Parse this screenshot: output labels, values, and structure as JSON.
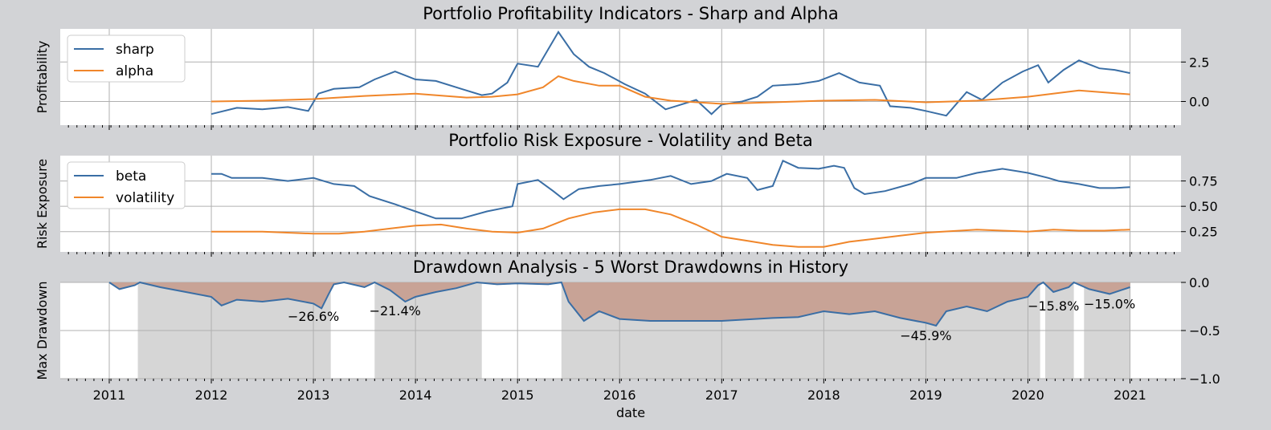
{
  "figure": {
    "background": "#d2d3d6",
    "plot_background": "#ffffff",
    "grid_color": "#b0b0b0",
    "shared_x": {
      "label": "date",
      "ticks": [
        2011,
        2012,
        2013,
        2014,
        2015,
        2016,
        2017,
        2018,
        2019,
        2020,
        2021
      ],
      "tick_labels": [
        "2011",
        "2012",
        "2013",
        "2014",
        "2015",
        "2016",
        "2017",
        "2018",
        "2019",
        "2020",
        "2021"
      ],
      "range": [
        2010.52,
        2021.5
      ]
    }
  },
  "chart_data": [
    {
      "type": "line",
      "title": "Portfolio Profitability Indicators - Sharp and Alpha",
      "ylabel": "Profitability",
      "xlabel": "",
      "ylim": [
        -1.5,
        4.6
      ],
      "yticks": [
        0.0,
        2.5
      ],
      "ytick_labels": [
        "0.0",
        "2.5"
      ],
      "grid": true,
      "legend_position": "upper-left",
      "series": [
        {
          "name": "sharp",
          "color": "#3a6ea5",
          "points": [
            [
              2012.0,
              -0.8
            ],
            [
              2012.25,
              -0.4
            ],
            [
              2012.5,
              -0.5
            ],
            [
              2012.75,
              -0.35
            ],
            [
              2012.95,
              -0.6
            ],
            [
              2013.05,
              0.5
            ],
            [
              2013.2,
              0.8
            ],
            [
              2013.45,
              0.9
            ],
            [
              2013.6,
              1.4
            ],
            [
              2013.8,
              1.9
            ],
            [
              2014.0,
              1.4
            ],
            [
              2014.2,
              1.3
            ],
            [
              2014.45,
              0.8
            ],
            [
              2014.65,
              0.4
            ],
            [
              2014.75,
              0.5
            ],
            [
              2014.9,
              1.2
            ],
            [
              2015.0,
              2.4
            ],
            [
              2015.2,
              2.2
            ],
            [
              2015.4,
              4.4
            ],
            [
              2015.55,
              3.0
            ],
            [
              2015.7,
              2.2
            ],
            [
              2015.85,
              1.8
            ],
            [
              2016.05,
              1.1
            ],
            [
              2016.25,
              0.5
            ],
            [
              2016.45,
              -0.5
            ],
            [
              2016.6,
              -0.2
            ],
            [
              2016.75,
              0.1
            ],
            [
              2016.9,
              -0.8
            ],
            [
              2017.0,
              -0.2
            ],
            [
              2017.2,
              0.0
            ],
            [
              2017.35,
              0.3
            ],
            [
              2017.5,
              1.0
            ],
            [
              2017.75,
              1.1
            ],
            [
              2017.95,
              1.3
            ],
            [
              2018.15,
              1.8
            ],
            [
              2018.35,
              1.2
            ],
            [
              2018.55,
              1.0
            ],
            [
              2018.65,
              -0.3
            ],
            [
              2018.85,
              -0.4
            ],
            [
              2019.0,
              -0.6
            ],
            [
              2019.2,
              -0.9
            ],
            [
              2019.4,
              0.6
            ],
            [
              2019.55,
              0.1
            ],
            [
              2019.75,
              1.2
            ],
            [
              2019.95,
              1.9
            ],
            [
              2020.1,
              2.3
            ],
            [
              2020.2,
              1.2
            ],
            [
              2020.35,
              2.0
            ],
            [
              2020.5,
              2.6
            ],
            [
              2020.7,
              2.1
            ],
            [
              2020.85,
              2.0
            ],
            [
              2021.0,
              1.8
            ]
          ]
        },
        {
          "name": "alpha",
          "color": "#f0862a",
          "points": [
            [
              2012.0,
              0.0
            ],
            [
              2012.5,
              0.05
            ],
            [
              2013.0,
              0.15
            ],
            [
              2013.5,
              0.35
            ],
            [
              2014.0,
              0.5
            ],
            [
              2014.5,
              0.25
            ],
            [
              2014.75,
              0.3
            ],
            [
              2015.0,
              0.45
            ],
            [
              2015.25,
              0.9
            ],
            [
              2015.4,
              1.6
            ],
            [
              2015.55,
              1.3
            ],
            [
              2015.8,
              1.0
            ],
            [
              2016.0,
              1.0
            ],
            [
              2016.25,
              0.3
            ],
            [
              2016.5,
              0.05
            ],
            [
              2017.0,
              -0.15
            ],
            [
              2017.5,
              -0.05
            ],
            [
              2018.0,
              0.05
            ],
            [
              2018.5,
              0.1
            ],
            [
              2019.0,
              -0.05
            ],
            [
              2019.5,
              0.05
            ],
            [
              2020.0,
              0.3
            ],
            [
              2020.5,
              0.7
            ],
            [
              2021.0,
              0.45
            ]
          ]
        }
      ]
    },
    {
      "type": "line",
      "title": "Portfolio Risk Exposure - Volatility and Beta",
      "ylabel": "Risk Exposure",
      "xlabel": "",
      "ylim": [
        0.05,
        1.0
      ],
      "yticks": [
        0.25,
        0.5,
        0.75
      ],
      "ytick_labels": [
        "0.25",
        "0.50",
        "0.75"
      ],
      "grid": true,
      "legend_position": "upper-left",
      "series": [
        {
          "name": "beta",
          "color": "#3a6ea5",
          "points": [
            [
              2012.0,
              0.82
            ],
            [
              2012.1,
              0.82
            ],
            [
              2012.2,
              0.78
            ],
            [
              2012.5,
              0.78
            ],
            [
              2012.75,
              0.75
            ],
            [
              2013.0,
              0.78
            ],
            [
              2013.2,
              0.72
            ],
            [
              2013.4,
              0.7
            ],
            [
              2013.55,
              0.6
            ],
            [
              2013.8,
              0.52
            ],
            [
              2014.0,
              0.45
            ],
            [
              2014.2,
              0.38
            ],
            [
              2014.45,
              0.38
            ],
            [
              2014.7,
              0.45
            ],
            [
              2014.85,
              0.48
            ],
            [
              2014.95,
              0.5
            ],
            [
              2015.0,
              0.72
            ],
            [
              2015.2,
              0.76
            ],
            [
              2015.35,
              0.65
            ],
            [
              2015.45,
              0.57
            ],
            [
              2015.6,
              0.67
            ],
            [
              2015.8,
              0.7
            ],
            [
              2016.0,
              0.72
            ],
            [
              2016.3,
              0.76
            ],
            [
              2016.5,
              0.8
            ],
            [
              2016.7,
              0.72
            ],
            [
              2016.9,
              0.75
            ],
            [
              2017.05,
              0.82
            ],
            [
              2017.25,
              0.78
            ],
            [
              2017.35,
              0.66
            ],
            [
              2017.5,
              0.7
            ],
            [
              2017.6,
              0.95
            ],
            [
              2017.75,
              0.88
            ],
            [
              2017.95,
              0.87
            ],
            [
              2018.1,
              0.9
            ],
            [
              2018.2,
              0.88
            ],
            [
              2018.3,
              0.68
            ],
            [
              2018.4,
              0.62
            ],
            [
              2018.6,
              0.65
            ],
            [
              2018.85,
              0.72
            ],
            [
              2019.0,
              0.78
            ],
            [
              2019.3,
              0.78
            ],
            [
              2019.5,
              0.83
            ],
            [
              2019.75,
              0.87
            ],
            [
              2020.0,
              0.83
            ],
            [
              2020.2,
              0.78
            ],
            [
              2020.3,
              0.75
            ],
            [
              2020.5,
              0.72
            ],
            [
              2020.7,
              0.68
            ],
            [
              2020.85,
              0.68
            ],
            [
              2021.0,
              0.69
            ]
          ]
        },
        {
          "name": "volatility",
          "color": "#f0862a",
          "points": [
            [
              2012.0,
              0.25
            ],
            [
              2012.5,
              0.25
            ],
            [
              2013.0,
              0.23
            ],
            [
              2013.25,
              0.23
            ],
            [
              2013.5,
              0.25
            ],
            [
              2013.75,
              0.28
            ],
            [
              2014.0,
              0.31
            ],
            [
              2014.25,
              0.32
            ],
            [
              2014.5,
              0.28
            ],
            [
              2014.75,
              0.25
            ],
            [
              2015.0,
              0.24
            ],
            [
              2015.25,
              0.28
            ],
            [
              2015.5,
              0.38
            ],
            [
              2015.75,
              0.44
            ],
            [
              2016.0,
              0.47
            ],
            [
              2016.25,
              0.47
            ],
            [
              2016.5,
              0.42
            ],
            [
              2016.75,
              0.32
            ],
            [
              2017.0,
              0.2
            ],
            [
              2017.25,
              0.16
            ],
            [
              2017.5,
              0.12
            ],
            [
              2017.75,
              0.1
            ],
            [
              2018.0,
              0.1
            ],
            [
              2018.25,
              0.15
            ],
            [
              2018.5,
              0.18
            ],
            [
              2018.75,
              0.21
            ],
            [
              2019.0,
              0.24
            ],
            [
              2019.5,
              0.27
            ],
            [
              2020.0,
              0.25
            ],
            [
              2020.25,
              0.27
            ],
            [
              2020.5,
              0.26
            ],
            [
              2020.75,
              0.26
            ],
            [
              2021.0,
              0.27
            ]
          ]
        }
      ]
    },
    {
      "type": "area",
      "title": "Drawdown Analysis - 5 Worst Drawdowns in History",
      "ylabel": "Max Drawdown",
      "xlabel": "date",
      "ylim": [
        -1.0,
        0.0
      ],
      "yticks": [
        -1.0,
        -0.5,
        0.0
      ],
      "ytick_labels": [
        "−1.0",
        "−0.5",
        "0.0"
      ],
      "grid": true,
      "fill_color": "#c8a396",
      "shade_color": "#d6d6d6",
      "line_color": "#3a6ea5",
      "shaded_periods": [
        [
          2011.28,
          2013.17
        ],
        [
          2013.6,
          2014.65
        ],
        [
          2015.43,
          2020.12
        ],
        [
          2020.17,
          2020.45
        ],
        [
          2020.55,
          2021.0
        ]
      ],
      "annotations": [
        {
          "x": 2013.0,
          "y": -0.4,
          "text": "−26.6%"
        },
        {
          "x": 2013.8,
          "y": -0.34,
          "text": "−21.4%"
        },
        {
          "x": 2019.0,
          "y": -0.6,
          "text": "−45.9%"
        },
        {
          "x": 2020.25,
          "y": -0.29,
          "text": "−15.8%"
        },
        {
          "x": 2020.8,
          "y": -0.27,
          "text": "−15.0%"
        }
      ],
      "series": [
        {
          "name": "drawdown",
          "points": [
            [
              2011.0,
              0.0
            ],
            [
              2011.1,
              -0.07
            ],
            [
              2011.25,
              -0.03
            ],
            [
              2011.3,
              0.0
            ],
            [
              2011.5,
              -0.05
            ],
            [
              2011.75,
              -0.1
            ],
            [
              2012.0,
              -0.15
            ],
            [
              2012.1,
              -0.24
            ],
            [
              2012.25,
              -0.18
            ],
            [
              2012.5,
              -0.2
            ],
            [
              2012.75,
              -0.17
            ],
            [
              2013.0,
              -0.22
            ],
            [
              2013.08,
              -0.27
            ],
            [
              2013.15,
              -0.12
            ],
            [
              2013.2,
              -0.02
            ],
            [
              2013.3,
              0.0
            ],
            [
              2013.5,
              -0.05
            ],
            [
              2013.6,
              0.0
            ],
            [
              2013.75,
              -0.08
            ],
            [
              2013.9,
              -0.2
            ],
            [
              2014.0,
              -0.15
            ],
            [
              2014.2,
              -0.1
            ],
            [
              2014.4,
              -0.06
            ],
            [
              2014.6,
              0.0
            ],
            [
              2014.8,
              -0.02
            ],
            [
              2015.0,
              -0.01
            ],
            [
              2015.3,
              -0.02
            ],
            [
              2015.43,
              0.0
            ],
            [
              2015.5,
              -0.2
            ],
            [
              2015.65,
              -0.4
            ],
            [
              2015.8,
              -0.3
            ],
            [
              2016.0,
              -0.38
            ],
            [
              2016.3,
              -0.4
            ],
            [
              2016.6,
              -0.4
            ],
            [
              2017.0,
              -0.4
            ],
            [
              2017.5,
              -0.37
            ],
            [
              2017.75,
              -0.36
            ],
            [
              2018.0,
              -0.3
            ],
            [
              2018.25,
              -0.33
            ],
            [
              2018.5,
              -0.3
            ],
            [
              2018.75,
              -0.37
            ],
            [
              2019.0,
              -0.42
            ],
            [
              2019.1,
              -0.45
            ],
            [
              2019.2,
              -0.3
            ],
            [
              2019.4,
              -0.25
            ],
            [
              2019.6,
              -0.3
            ],
            [
              2019.8,
              -0.2
            ],
            [
              2020.0,
              -0.15
            ],
            [
              2020.1,
              -0.03
            ],
            [
              2020.15,
              0.0
            ],
            [
              2020.25,
              -0.1
            ],
            [
              2020.4,
              -0.05
            ],
            [
              2020.45,
              0.0
            ],
            [
              2020.6,
              -0.07
            ],
            [
              2020.8,
              -0.12
            ],
            [
              2021.0,
              -0.05
            ]
          ]
        }
      ]
    }
  ]
}
